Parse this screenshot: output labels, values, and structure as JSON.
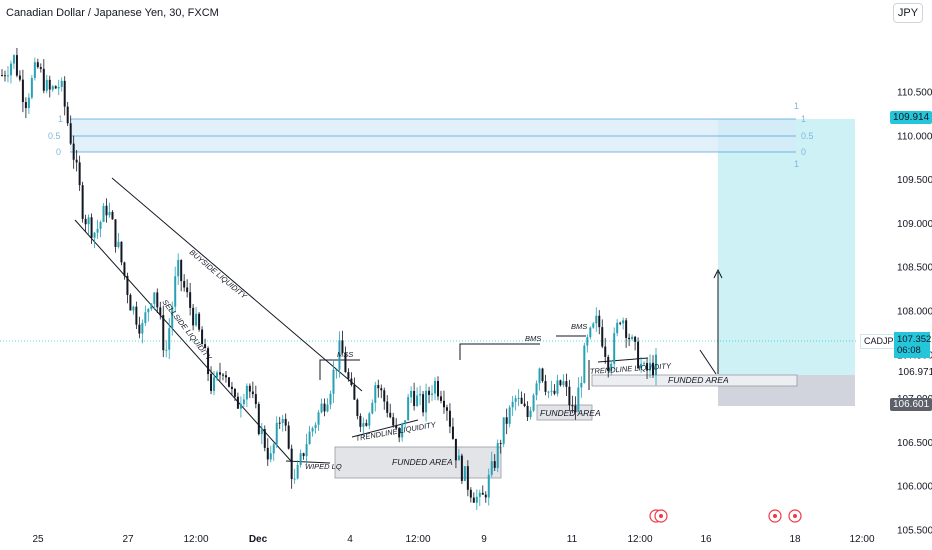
{
  "header": {
    "symbol_title": "Canadian Dollar / Japanese Yen, 30, FXCM",
    "currency_button": "JPY"
  },
  "price_tags": {
    "symbol": "CADJPY",
    "last_price": "107.352",
    "countdown": "06:08",
    "zone_top": "109.914",
    "stop_level": "106.601",
    "entry_level": "106.971"
  },
  "colors": {
    "candle": "#26a0b3",
    "candle_dark": "#131722",
    "target_fill": "#c9f0f5",
    "stop_fill": "#d1d4dc",
    "fib_fill": "#d6eaf8",
    "fib_line": "#4ba3d9",
    "axis_text": "#131722"
  },
  "annotations": {
    "buyside": "BUYSIDE LIQUIDITY",
    "sellside": "SELLSIDE LIQUIDITY",
    "mss": "MSS",
    "bms1": "BMS",
    "bms2": "BMS",
    "trendline1": "TRENDLINE LIQUIDITY",
    "trendline2": "TRENDLINE LIQUIDITY",
    "wiped": "WIPED LQ",
    "funded1": "FUNDED AREA",
    "funded2": "FUNDED AREA",
    "funded3": "FUNDED AREA",
    "fib_1": "1",
    "fib_05": "0.5",
    "fib_0": "0"
  },
  "chart_data": {
    "type": "candlestick",
    "title": "Canadian Dollar / Japanese Yen, 30, FXCM",
    "ylim": [
      105.3,
      111.5
    ],
    "y_ticks": [
      105.5,
      106.0,
      106.5,
      107.0,
      107.5,
      108.0,
      108.5,
      109.0,
      109.5,
      110.0,
      110.5
    ],
    "y_tick_labels": [
      "105.500",
      "106.000",
      "106.500",
      "107.000",
      "107.500",
      "108.000",
      "108.500",
      "109.000",
      "109.500",
      "110.000",
      "110.500"
    ],
    "x_tick_labels": [
      "25",
      "27",
      "12:00",
      "Dec",
      "4",
      "12:00",
      "9",
      "11",
      "12:00",
      "16",
      "18",
      "12:00"
    ],
    "price_path": [
      110.7,
      110.9,
      110.4,
      110.8,
      110.5,
      110.6,
      109.9,
      109.1,
      108.9,
      109.2,
      108.7,
      108.1,
      107.8,
      108.3,
      107.5,
      108.5,
      108.1,
      107.7,
      107.1,
      107.4,
      106.9,
      107.2,
      106.7,
      106.3,
      106.9,
      106.0,
      106.5,
      106.8,
      107.1,
      107.6,
      107.0,
      106.7,
      107.2,
      106.9,
      106.5,
      107.1,
      106.9,
      107.2,
      107.0,
      106.3,
      106.0,
      105.8,
      106.2,
      106.7,
      107.0,
      106.8,
      107.4,
      107.0,
      107.2,
      106.8,
      107.6,
      107.9,
      107.4,
      108.0,
      107.6,
      107.3,
      107.4
    ]
  }
}
